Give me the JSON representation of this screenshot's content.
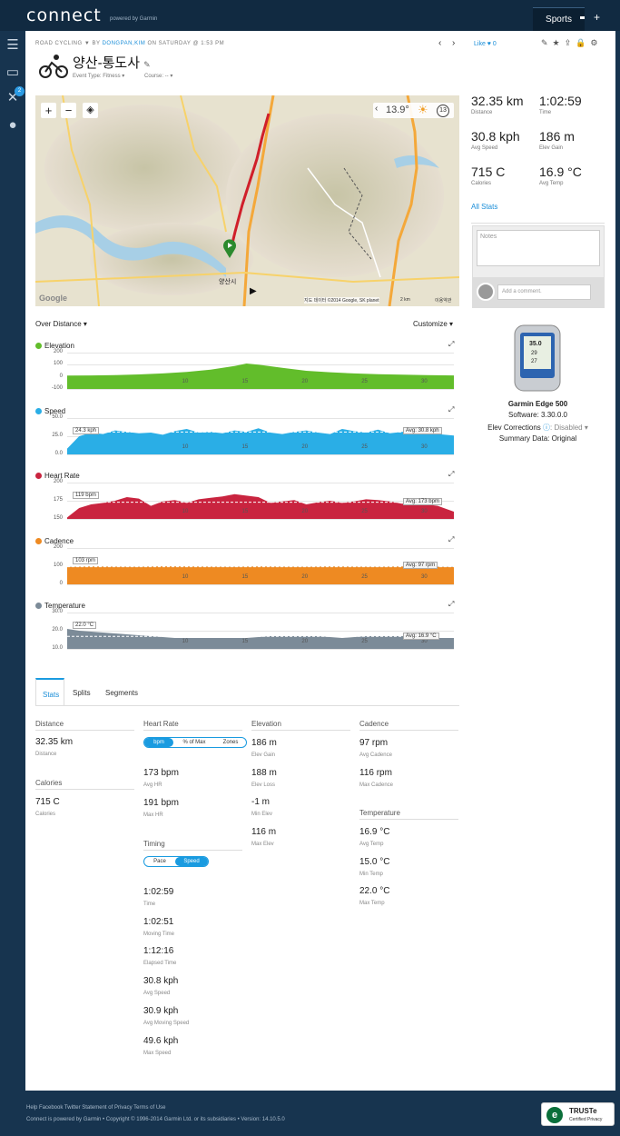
{
  "brand": {
    "name": "connect",
    "tagline": "powered by Garmin"
  },
  "topnav": {
    "sports": "Sports",
    "plus": "+"
  },
  "sidebar": {
    "badge": "2"
  },
  "activity": {
    "breadcrumb_type": "ROAD CYCLING",
    "by": "BY",
    "owner": "DONGPAN,KIM",
    "when": "ON SATURDAY @ 1:53 PM",
    "title": "양산-통도사",
    "event_type": "Event Type: Fitness",
    "course": "Course: --",
    "like": "Like",
    "like_count": "0"
  },
  "map": {
    "temp": "13.9°",
    "clock": "13",
    "attribution": "지도 데이터 ©2014 Google, SK planet",
    "scale": "2 km",
    "terms": "이용약관",
    "city": "양산시",
    "google": "Google"
  },
  "summary": [
    {
      "value": "32.35 km",
      "label": "Distance"
    },
    {
      "value": "1:02:59",
      "label": "Time"
    },
    {
      "value": "30.8 kph",
      "label": "Avg Speed"
    },
    {
      "value": "186 m",
      "label": "Elev Gain"
    },
    {
      "value": "715 C",
      "label": "Calories"
    },
    {
      "value": "16.9 °C",
      "label": "Avg Temp"
    }
  ],
  "all_stats": "All Stats",
  "notes_placeholder": "Notes",
  "comment_placeholder": "Add a comment.",
  "device": {
    "name": "Garmin Edge 500",
    "software": "Software: 3.30.0.0",
    "elev_corr_label": "Elev Corrections",
    "elev_corr_value": "Disabled",
    "summary_data": "Summary Data: Original",
    "screen_top": "35.0",
    "screen_mid": "29",
    "screen_bot": "27"
  },
  "charts_header": {
    "mode": "Over Distance",
    "customize": "Customize"
  },
  "colors": {
    "elevation": "#62bd2b",
    "speed": "#2aaee6",
    "heart": "#c9243f",
    "cadence": "#ee8a22",
    "temperature": "#7c8b98"
  },
  "chart_data": [
    {
      "type": "area",
      "title": "Elevation",
      "yticks": [
        "200",
        "100",
        "0",
        "-100"
      ],
      "ylim": [
        -100,
        200
      ],
      "xticks": [
        "10",
        "15",
        "20",
        "25",
        "30"
      ],
      "x": [
        0,
        2,
        4,
        6,
        8,
        10,
        12,
        14,
        15,
        16,
        18,
        20,
        22,
        24,
        26,
        28,
        30,
        32.35
      ],
      "values": [
        10,
        12,
        15,
        20,
        28,
        40,
        60,
        90,
        110,
        100,
        75,
        50,
        38,
        28,
        22,
        18,
        15,
        12
      ]
    },
    {
      "type": "area",
      "title": "Speed",
      "yticks": [
        "50.0",
        "25.0",
        "0.0"
      ],
      "ylim": [
        0,
        50
      ],
      "xticks": [
        "10",
        "15",
        "20",
        "25",
        "30"
      ],
      "min_label": "24.3 kph",
      "avg_label": "Avg: 30.8 kph",
      "avg": 30.8,
      "x": [
        0,
        1,
        2,
        3,
        4,
        5,
        6,
        7,
        8,
        9,
        10,
        11,
        12,
        13,
        14,
        15,
        16,
        17,
        18,
        19,
        20,
        21,
        22,
        23,
        24,
        25,
        26,
        27,
        28,
        29,
        30,
        31,
        32.35
      ],
      "values": [
        8,
        25,
        30,
        28,
        33,
        31,
        29,
        30,
        27,
        32,
        35,
        30,
        31,
        29,
        33,
        31,
        36,
        30,
        28,
        31,
        33,
        30,
        28,
        35,
        32,
        30,
        34,
        29,
        31,
        33,
        30,
        28,
        26
      ]
    },
    {
      "type": "area",
      "title": "Heart Rate",
      "yticks": [
        "200",
        "175",
        "150"
      ],
      "ylim": [
        150,
        200
      ],
      "xticks": [
        "10",
        "15",
        "20",
        "25",
        "30"
      ],
      "min_label": "119 bpm",
      "avg_label": "Avg: 173 bpm",
      "avg": 173,
      "x": [
        0,
        1,
        2,
        3,
        4,
        5,
        6,
        7,
        8,
        9,
        10,
        11,
        12,
        13,
        14,
        15,
        16,
        17,
        18,
        19,
        20,
        21,
        22,
        23,
        24,
        25,
        26,
        27,
        28,
        29,
        30,
        31,
        32.35
      ],
      "values": [
        152,
        165,
        170,
        172,
        175,
        180,
        178,
        168,
        174,
        176,
        172,
        177,
        179,
        181,
        184,
        182,
        180,
        172,
        174,
        176,
        170,
        173,
        175,
        172,
        174,
        177,
        176,
        174,
        171,
        172,
        170,
        168,
        160
      ]
    },
    {
      "type": "area",
      "title": "Cadence",
      "yticks": [
        "200",
        "100",
        "0"
      ],
      "ylim": [
        0,
        200
      ],
      "xticks": [
        "10",
        "15",
        "20",
        "25",
        "30"
      ],
      "min_label": "103 rpm",
      "avg_label": "Avg: 97 rpm",
      "avg": 97,
      "x": [
        0,
        2,
        4,
        6,
        8,
        10,
        12,
        14,
        16,
        18,
        20,
        22,
        24,
        26,
        28,
        30,
        32.35
      ],
      "values": [
        95,
        98,
        97,
        96,
        99,
        98,
        97,
        96,
        98,
        97,
        96,
        98,
        97,
        96,
        98,
        97,
        95
      ]
    },
    {
      "type": "area",
      "title": "Temperature",
      "yticks": [
        "30.0",
        "20.0",
        "10.0"
      ],
      "ylim": [
        10,
        30
      ],
      "xticks": [
        "10",
        "15",
        "20",
        "25",
        "30"
      ],
      "min_label": "22.0 °C",
      "avg_label": "Avg: 16.9 °C",
      "avg": 16.9,
      "x": [
        0,
        1,
        3,
        5,
        7,
        9,
        11,
        13,
        15,
        17,
        19,
        21,
        23,
        25,
        27,
        29,
        31,
        32.35
      ],
      "values": [
        21,
        20,
        19,
        18,
        17,
        16,
        16,
        16,
        16,
        17,
        17,
        17,
        16,
        17,
        17,
        17,
        16,
        16
      ]
    }
  ],
  "tabs": [
    "Stats",
    "Splits",
    "Segments"
  ],
  "stats": {
    "distance": {
      "header": "Distance",
      "value": "32.35 km",
      "label": "Distance"
    },
    "calories": {
      "header": "Calories",
      "value": "715 C",
      "label": "Calories"
    },
    "heart": {
      "header": "Heart Rate",
      "seg": [
        "bpm",
        "% of Max",
        "Zones"
      ],
      "items": [
        {
          "value": "173 bpm",
          "label": "Avg HR"
        },
        {
          "value": "191 bpm",
          "label": "Max HR"
        }
      ]
    },
    "timing": {
      "header": "Timing",
      "seg": [
        "Pace",
        "Speed"
      ],
      "items": [
        {
          "value": "1:02:59",
          "label": "Time"
        },
        {
          "value": "1:02:51",
          "label": "Moving Time"
        },
        {
          "value": "1:12:16",
          "label": "Elapsed Time"
        },
        {
          "value": "30.8 kph",
          "label": "Avg Speed"
        },
        {
          "value": "30.9 kph",
          "label": "Avg Moving Speed"
        },
        {
          "value": "49.6 kph",
          "label": "Max Speed"
        }
      ]
    },
    "elevation": {
      "header": "Elevation",
      "items": [
        {
          "value": "186 m",
          "label": "Elev Gain"
        },
        {
          "value": "188 m",
          "label": "Elev Loss"
        },
        {
          "value": "-1 m",
          "label": "Min Elev"
        },
        {
          "value": "116 m",
          "label": "Max Elev"
        }
      ]
    },
    "cadence": {
      "header": "Cadence",
      "items": [
        {
          "value": "97 rpm",
          "label": "Avg Cadence"
        },
        {
          "value": "116 rpm",
          "label": "Max Cadence"
        }
      ]
    },
    "temperature": {
      "header": "Temperature",
      "items": [
        {
          "value": "16.9 °C",
          "label": "Avg Temp"
        },
        {
          "value": "15.0 °C",
          "label": "Min Temp"
        },
        {
          "value": "22.0 °C",
          "label": "Max Temp"
        }
      ]
    }
  },
  "footer": {
    "links": "Help Facebook Twitter Statement of Privacy Terms of Use",
    "copy": "Connect is powered by Garmin • Copyright © 1996-2014 Garmin Ltd. or its subsidiaries • Version: 14.10.5.0",
    "truste": "TRUSTe",
    "truste_sub": "Certified Privacy"
  }
}
